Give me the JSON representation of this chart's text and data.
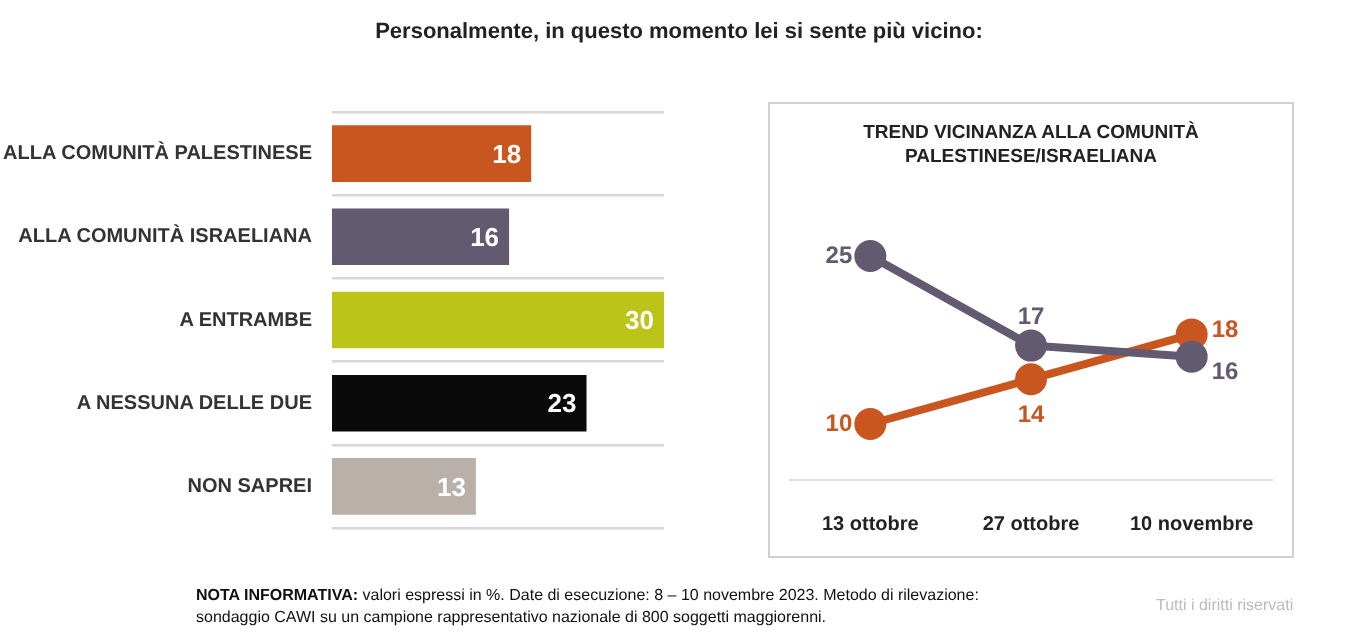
{
  "chart_data": [
    {
      "type": "bar",
      "orientation": "horizontal",
      "title": "Personalmente, in questo momento lei si sente più vicino:",
      "categories": [
        "ALLA COMUNITÀ PALESTINESE",
        "ALLA COMUNITÀ ISRAELIANA",
        "A ENTRAMBE",
        "A NESSUNA DELLE DUE",
        "NON SAPREI"
      ],
      "values": [
        18,
        16,
        30,
        23,
        13
      ],
      "colors": [
        "#c8561e",
        "#615a71",
        "#bcc41a",
        "#0a0a0a",
        "#b9b0aa"
      ],
      "data_labels": true,
      "grid": "y",
      "annotations": [
        "NOTA INFORMATIVA: valori espressi in %. Date di esecuzione: 8 – 10 novembre 2023. Metodo di rilevazione: sondaggio CAWI su un campione rappresentativo nazionale di 800 soggetti maggiorenni.",
        "Tutti i diritti riservati"
      ]
    },
    {
      "type": "line",
      "title": "TREND VICINANZA ALLA COMUNITÀ PALESTINESE/ISRAELIANA",
      "categories": [
        "13 ottobre",
        "27 ottobre",
        "10 novembre"
      ],
      "series": [
        {
          "color": "#615a71",
          "values": [
            25,
            17,
            16
          ]
        },
        {
          "color": "#c8561e",
          "values": [
            10,
            14,
            18
          ]
        }
      ],
      "data_labels": true,
      "marker": "circle",
      "grid": false
    }
  ]
}
